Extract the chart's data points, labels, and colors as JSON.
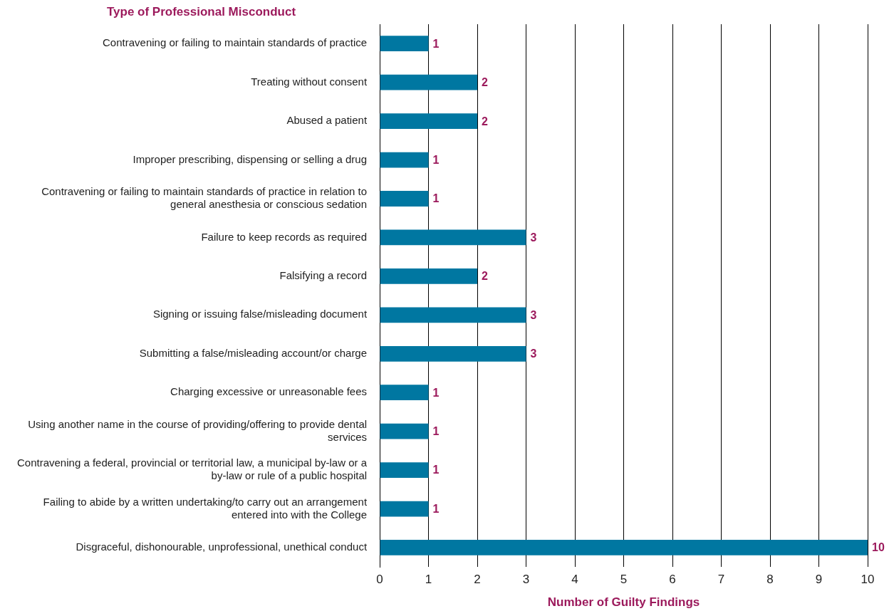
{
  "chart_data": {
    "type": "bar",
    "orientation": "horizontal",
    "title": "Type of Professional Misconduct",
    "xlabel": "Number of Guilty Findings",
    "categories": [
      "Contravening or failing to maintain standards of practice",
      "Treating without consent",
      "Abused a patient",
      "Improper prescribing, dispensing or selling a drug",
      "Contravening or failing to maintain standards of practice in relation to general anesthesia or conscious sedation",
      "Failure to keep records as required",
      "Falsifying a record",
      "Signing or issuing false/misleading document",
      "Submitting a false/misleading account/or charge",
      "Charging excessive or unreasonable fees",
      "Using another name in the course of providing/offering to provide dental services",
      "Contravening a federal, provincial or territorial law, a municipal by-law or a by-law or rule of a public hospital",
      "Failing to abide by a written undertaking/to carry out an arrangement entered into with the College",
      "Disgraceful, dishonourable, unprofessional, unethical conduct"
    ],
    "values": [
      1,
      2,
      2,
      1,
      1,
      3,
      2,
      3,
      3,
      1,
      1,
      1,
      1,
      10
    ],
    "color": "#0077a1",
    "xlim": [
      0,
      10
    ],
    "xticks": [
      0,
      1,
      2,
      3,
      4,
      5,
      6,
      7,
      8,
      9,
      10
    ],
    "grid": "x",
    "data_labels": true,
    "legend": false
  }
}
